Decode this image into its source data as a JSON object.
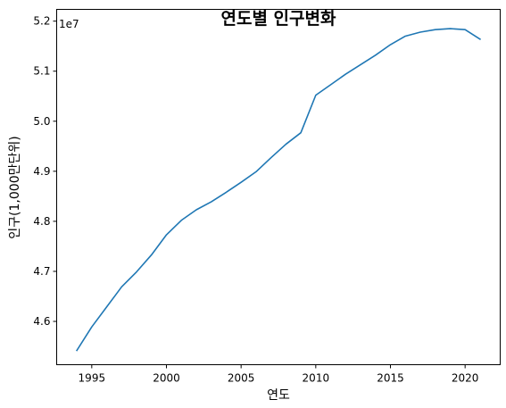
{
  "chart_data": {
    "type": "line",
    "title": "연도별 인구변화",
    "xlabel": "연도",
    "ylabel": "인구(1,000만단위)",
    "y_offset_label": "1e7",
    "xlim": [
      1992.65,
      2022.35
    ],
    "ylim": [
      4.5135,
      5.2235
    ],
    "x_ticks": [
      1995,
      2000,
      2005,
      2010,
      2015,
      2020
    ],
    "y_ticks": [
      4.6,
      4.7,
      4.8,
      4.9,
      5.0,
      5.1,
      5.2
    ],
    "x_tick_labels": [
      "1995",
      "2000",
      "2005",
      "2010",
      "2015",
      "2020"
    ],
    "y_tick_labels": [
      "4.6",
      "4.7",
      "4.8",
      "4.9",
      "5.0",
      "5.1",
      "5.2"
    ],
    "grid": false,
    "line_color": "#1f77b4",
    "series": [
      {
        "x": [
          1994,
          1995,
          1996,
          1997,
          1998,
          1999,
          2000,
          2001,
          2002,
          2003,
          2004,
          2005,
          2006,
          2007,
          2008,
          2009,
          2010,
          2011,
          2012,
          2013,
          2014,
          2015,
          2016,
          2017,
          2018,
          2019,
          2020,
          2021
        ],
        "values": [
          4.542,
          4.589,
          4.629,
          4.669,
          4.699,
          4.733,
          4.773,
          4.802,
          4.823,
          4.839,
          4.858,
          4.878,
          4.899,
          4.927,
          4.954,
          4.977,
          5.052,
          5.073,
          5.094,
          5.113,
          5.132,
          5.153,
          5.17,
          5.178,
          5.183,
          5.185,
          5.183,
          5.164
        ]
      }
    ]
  }
}
